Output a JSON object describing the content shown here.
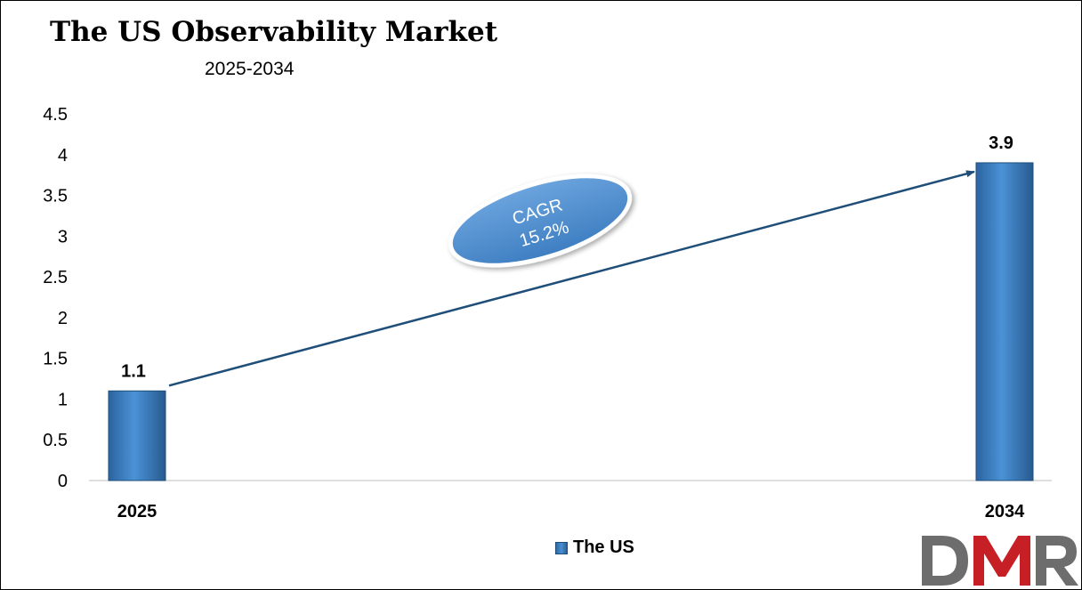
{
  "chart_data": {
    "type": "bar",
    "title": "The US Observability Market",
    "subtitle": "2025-2034",
    "categories": [
      "2025",
      "2034"
    ],
    "series": [
      {
        "name": "The US",
        "values": [
          1.1,
          3.9
        ],
        "data_labels": [
          "1.1",
          "3.9"
        ]
      }
    ],
    "ylim": [
      0,
      4.5
    ],
    "yticks": [
      "0",
      "0.5",
      "1",
      "1.5",
      "2",
      "2.5",
      "3",
      "3.5",
      "4",
      "4.5"
    ],
    "grid": false,
    "legend_position": "bottom",
    "annotation": {
      "line1": "CAGR",
      "line2": "15.2%"
    },
    "colors": {
      "bar": "#3a7dc4",
      "bar_edge": "#1f4e79",
      "arrow": "#1f4e79",
      "ellipse": "#4f8ccc"
    }
  },
  "logo": {
    "text": "DMR",
    "colors": {
      "d": "#6d6d6d",
      "m": "#c62026",
      "r": "#6d6d6d"
    }
  }
}
